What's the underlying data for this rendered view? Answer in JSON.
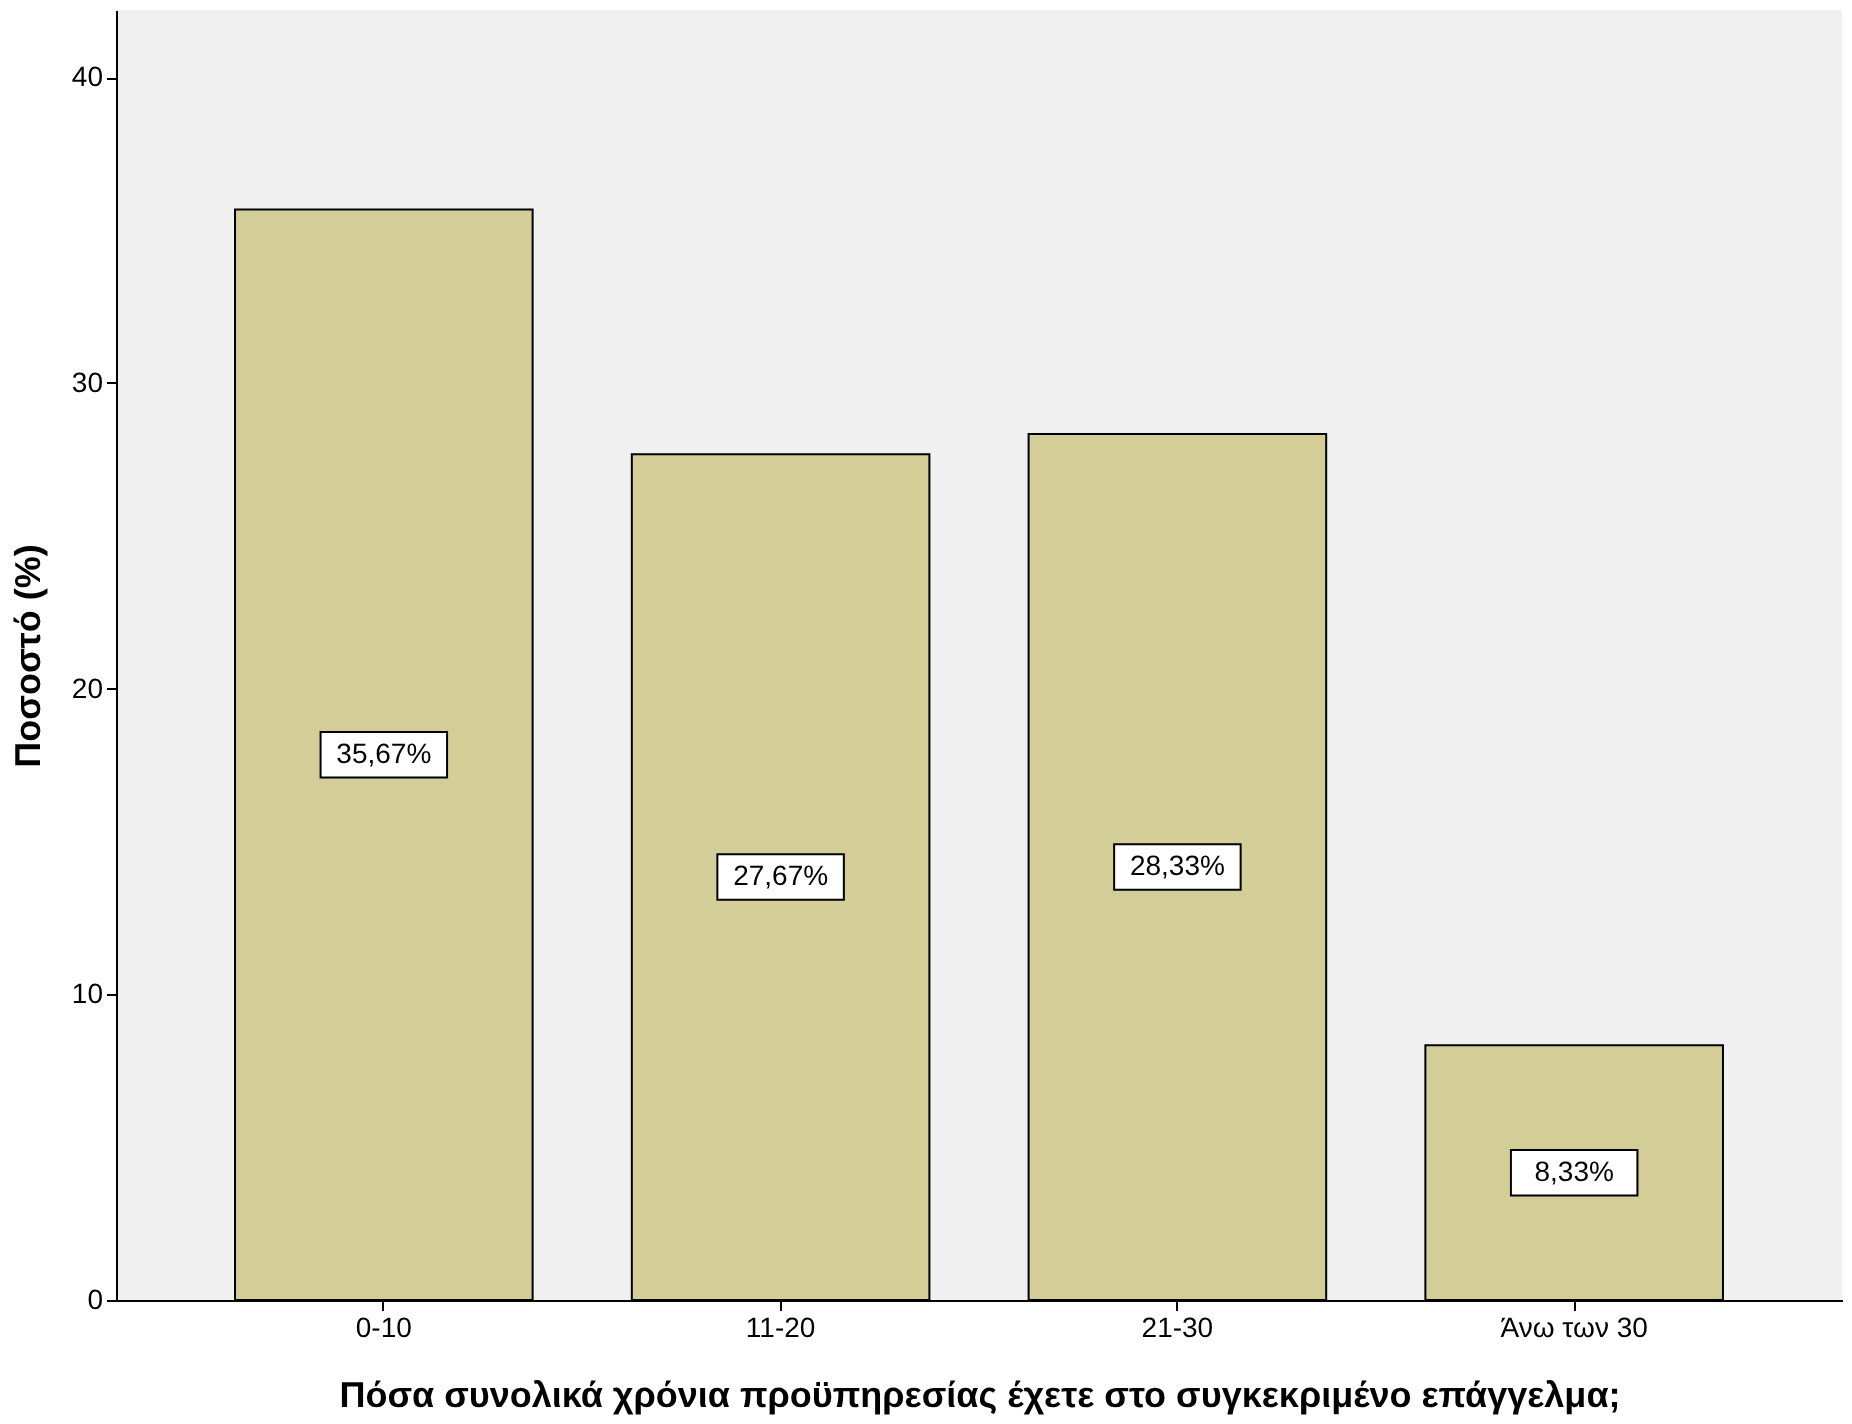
{
  "chart_data": {
    "type": "bar",
    "xlabel": "Πόσα συνολικά χρόνια προϋπηρεσίας έχετε στο συγκεκριμένο επάγγελμα;",
    "ylabel": "Ποσοστό (%)",
    "categories": [
      "0-10",
      "11-20",
      "21-30",
      "Άνω των 30"
    ],
    "values": [
      35.67,
      27.67,
      28.33,
      8.33
    ],
    "value_labels": [
      "35,67%",
      "27,67%",
      "28,33%",
      "8,33%"
    ],
    "color": "#d3ce97",
    "ylim": [
      0,
      42.2
    ],
    "yticks": [
      0,
      10,
      20,
      30,
      40
    ],
    "grid": false
  }
}
